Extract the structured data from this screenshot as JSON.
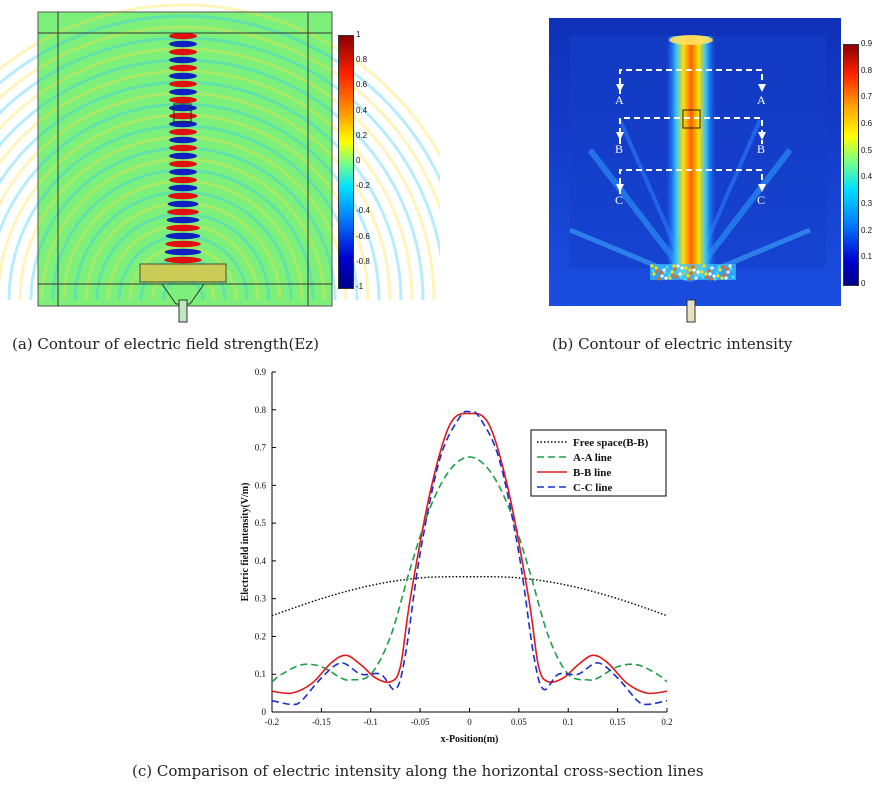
{
  "panel_a": {
    "caption": "(a) Contour of electric field strength(Ez)",
    "colorbar": {
      "ticks": [
        "1",
        "0.8",
        "0.6",
        "0.4",
        "0.2",
        "0",
        "-0.2",
        "-0.4",
        "-0.6",
        "-0.8",
        "-1"
      ],
      "colors": [
        "#8b0000",
        "#ff3000",
        "#ffa500",
        "#ffff00",
        "#80ff80",
        "#00ffff",
        "#0080ff",
        "#0000c0",
        "#00008b"
      ]
    },
    "background": "#7cf07a"
  },
  "panel_b": {
    "caption": "(b) Contour of electric intensity",
    "colorbar": {
      "ticks": [
        "0.9",
        "0.8",
        "0.7",
        "0.6",
        "0.5",
        "0.4",
        "0.3",
        "0.2",
        "0.1",
        "0"
      ],
      "colors": [
        "#00008b",
        "#0000ff",
        "#0080ff",
        "#00ffff",
        "#80ff80",
        "#ffff00",
        "#ffa500",
        "#ff3000",
        "#8b0000"
      ]
    },
    "background": "#0a24c8",
    "section_labels": [
      "A",
      "A",
      "B",
      "B",
      "C",
      "C"
    ]
  },
  "panel_c": {
    "caption": "(c) Comparison of electric intensity along the horizontal cross-section lines"
  },
  "chart_data": {
    "type": "line",
    "title": "",
    "xlabel": "x-Position(m)",
    "ylabel": "Electric field intensity(V/m)",
    "xlim": [
      -0.2,
      0.2
    ],
    "ylim": [
      0,
      0.9
    ],
    "xticks": [
      -0.2,
      -0.15,
      -0.1,
      -0.05,
      0,
      0.05,
      0.1,
      0.15,
      0.2
    ],
    "xtick_labels": [
      "-0.2",
      "-0.15",
      "-0.1",
      "-0.05",
      "0",
      "0.05",
      "0.1",
      "0.15",
      "0.2"
    ],
    "yticks": [
      0,
      0.1,
      0.2,
      0.3,
      0.4,
      0.5,
      0.6,
      0.7,
      0.8,
      0.9
    ],
    "ytick_labels": [
      "0",
      "0.1",
      "0.2",
      "0.3",
      "0.4",
      "0.5",
      "0.6",
      "0.7",
      "0.8",
      "0.9"
    ],
    "legend_position": "top-right",
    "series": [
      {
        "name": "Free space(B-B)",
        "color": "#000000",
        "style": "dotted",
        "x": [
          -0.2,
          -0.15,
          -0.1,
          -0.05,
          0,
          0.05,
          0.1,
          0.15,
          0.2
        ],
        "y": [
          0.255,
          0.3,
          0.335,
          0.355,
          0.358,
          0.355,
          0.335,
          0.3,
          0.255
        ]
      },
      {
        "name": "A-A line",
        "color": "#1f9e4a",
        "style": "dashed",
        "x": [
          -0.2,
          -0.19,
          -0.17,
          -0.15,
          -0.13,
          -0.12,
          -0.1,
          -0.08,
          -0.06,
          -0.04,
          -0.02,
          0,
          0.02,
          0.04,
          0.06,
          0.08,
          0.1,
          0.12,
          0.13,
          0.15,
          0.17,
          0.19,
          0.2
        ],
        "y": [
          0.08,
          0.1,
          0.125,
          0.12,
          0.09,
          0.085,
          0.1,
          0.2,
          0.38,
          0.54,
          0.64,
          0.675,
          0.64,
          0.54,
          0.38,
          0.2,
          0.1,
          0.085,
          0.09,
          0.12,
          0.125,
          0.1,
          0.08
        ]
      },
      {
        "name": "B-B line",
        "color": "#e01a1a",
        "style": "solid",
        "x": [
          -0.2,
          -0.18,
          -0.16,
          -0.14,
          -0.125,
          -0.11,
          -0.095,
          -0.08,
          -0.07,
          -0.06,
          -0.04,
          -0.02,
          0,
          0.02,
          0.04,
          0.06,
          0.07,
          0.08,
          0.095,
          0.11,
          0.125,
          0.14,
          0.16,
          0.18,
          0.2
        ],
        "y": [
          0.055,
          0.05,
          0.075,
          0.13,
          0.15,
          0.125,
          0.09,
          0.08,
          0.12,
          0.3,
          0.58,
          0.76,
          0.79,
          0.76,
          0.58,
          0.3,
          0.12,
          0.08,
          0.09,
          0.125,
          0.15,
          0.13,
          0.075,
          0.05,
          0.055
        ]
      },
      {
        "name": "C-C line",
        "color": "#1a2ed0",
        "style": "dashed",
        "x": [
          -0.2,
          -0.18,
          -0.17,
          -0.15,
          -0.13,
          -0.11,
          -0.09,
          -0.075,
          -0.065,
          -0.05,
          -0.03,
          -0.01,
          0,
          0.01,
          0.03,
          0.05,
          0.065,
          0.075,
          0.09,
          0.11,
          0.13,
          0.15,
          0.17,
          0.18,
          0.2
        ],
        "y": [
          0.03,
          0.02,
          0.03,
          0.09,
          0.13,
          0.1,
          0.1,
          0.06,
          0.15,
          0.42,
          0.67,
          0.78,
          0.795,
          0.78,
          0.67,
          0.42,
          0.15,
          0.06,
          0.1,
          0.1,
          0.13,
          0.09,
          0.03,
          0.02,
          0.03
        ]
      }
    ]
  }
}
